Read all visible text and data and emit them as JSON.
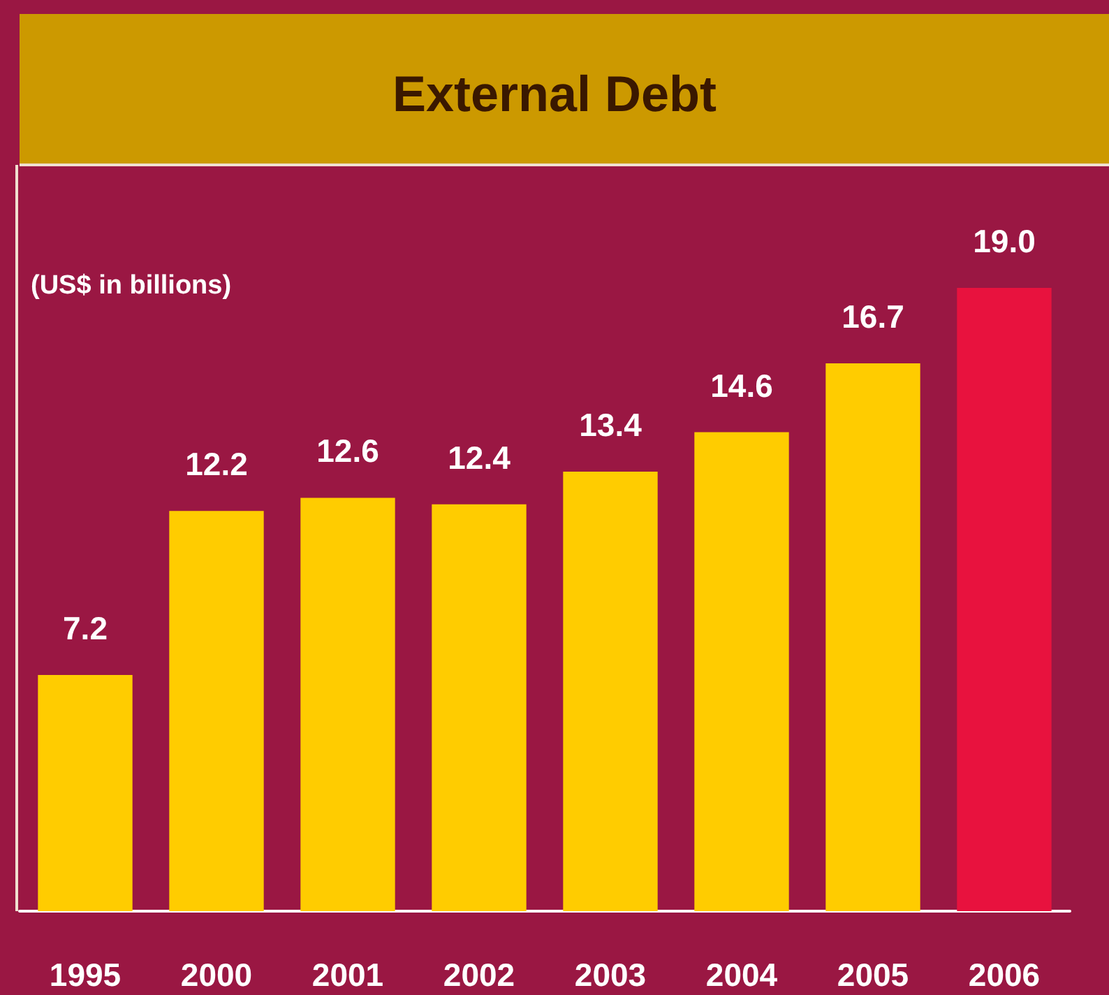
{
  "chart_data": {
    "type": "bar",
    "title": "External Debt",
    "ylabel": "(US$ in billions)",
    "categories": [
      "1995",
      "2000",
      "2001",
      "2002",
      "2003",
      "2004",
      "2005",
      "2006"
    ],
    "values": [
      7.2,
      12.2,
      12.6,
      12.4,
      13.4,
      14.6,
      16.7,
      19.0
    ],
    "value_labels": [
      "7.2",
      "12.2",
      "12.6",
      "12.4",
      "13.4",
      "14.6",
      "16.7",
      "19.0"
    ],
    "colors": [
      "#ffcc00",
      "#ffcc00",
      "#ffcc00",
      "#ffcc00",
      "#ffcc00",
      "#ffcc00",
      "#ffcc00",
      "#e8123e"
    ]
  }
}
